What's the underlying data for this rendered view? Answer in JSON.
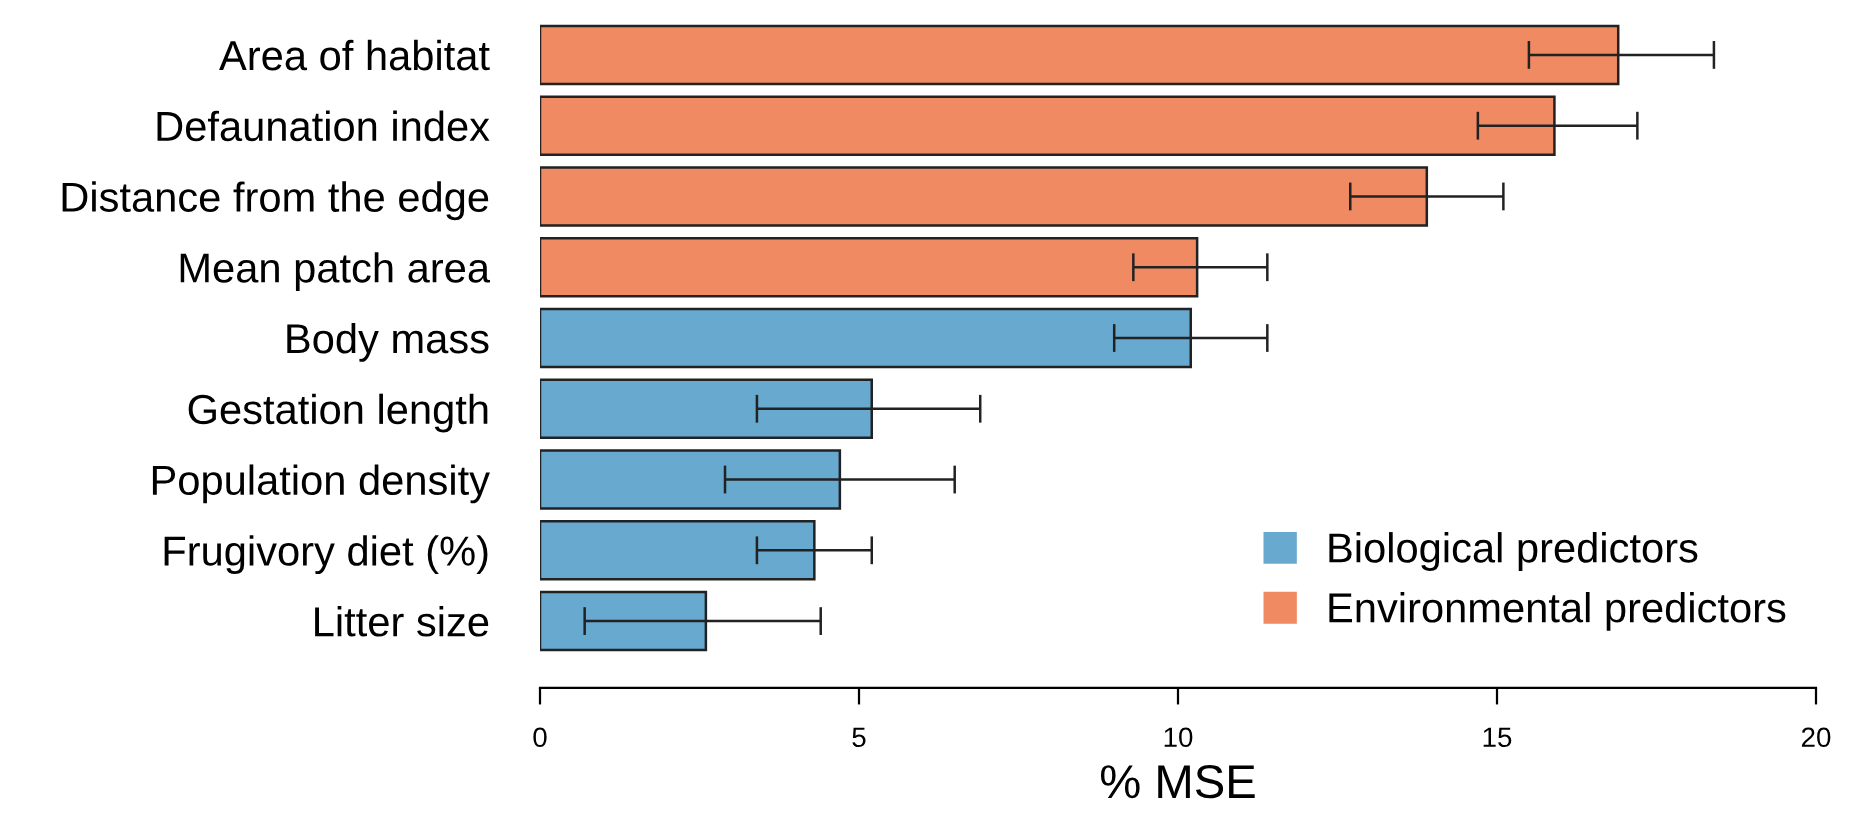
{
  "chart_data": {
    "type": "bar",
    "orientation": "horizontal",
    "xlabel": "% MSE",
    "categories": [
      "Area of habitat",
      "Defaunation index",
      "Distance from the edge",
      "Mean patch area",
      "Body mass",
      "Gestation length",
      "Population density",
      "Frugivory diet (%)",
      "Litter size"
    ],
    "series": [
      {
        "name": "Biological predictors",
        "color": "#67a9cf",
        "values": [
          null,
          null,
          null,
          null,
          10.2,
          5.2,
          4.7,
          4.3,
          2.6
        ],
        "errors": [
          null,
          null,
          null,
          null,
          [
            9.0,
            11.4
          ],
          [
            3.4,
            6.9
          ],
          [
            2.9,
            6.5
          ],
          [
            3.4,
            5.2
          ],
          [
            0.7,
            4.4
          ]
        ]
      },
      {
        "name": "Environmental predictors",
        "color": "#ef8a62",
        "values": [
          16.9,
          15.9,
          13.9,
          10.3,
          null,
          null,
          null,
          null,
          null
        ],
        "errors": [
          [
            15.5,
            18.4
          ],
          [
            14.7,
            17.2
          ],
          [
            12.7,
            15.1
          ],
          [
            9.3,
            11.4
          ],
          null,
          null,
          null,
          null,
          null
        ]
      }
    ],
    "xlim": [
      0,
      20
    ],
    "xticks": [
      0,
      5,
      10,
      15,
      20
    ],
    "legend": "bottom right",
    "grid": false
  }
}
